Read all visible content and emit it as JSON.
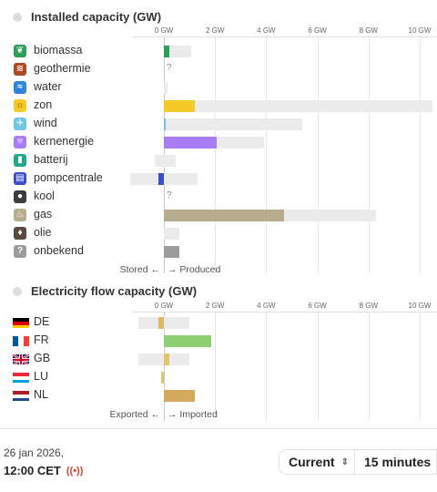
{
  "chart_data": [
    {
      "type": "bar",
      "title": "Installed capacity (GW)",
      "tick_labels": [
        "0 GW",
        "2 GW",
        "4 GW",
        "6 GW",
        "8 GW",
        "10 GW"
      ],
      "xlim": [
        -1.2,
        10.5
      ],
      "negative_label": "Stored ←",
      "positive_label": "→ Produced",
      "rows": [
        {
          "label": "biomassa",
          "icon": "biomass-icon",
          "color": "#2e9e5b",
          "value": 0.2,
          "capacity_pos": 1.05,
          "capacity_neg": 0
        },
        {
          "label": "geothermie",
          "icon": "geothermal-icon",
          "color": "#b04a22",
          "value": 0,
          "capacity_pos": 0,
          "capacity_neg": 0,
          "unknown": "?"
        },
        {
          "label": "water",
          "icon": "water-icon",
          "color": "#2f86d8",
          "value": 0,
          "capacity_pos": 0.15,
          "capacity_neg": 0
        },
        {
          "label": "zon",
          "icon": "solar-icon",
          "color": "#f5c926",
          "value": 1.2,
          "capacity_pos": 10.5,
          "capacity_neg": 0
        },
        {
          "label": "wind",
          "icon": "wind-icon",
          "color": "#6fc8ea",
          "value": 0.07,
          "capacity_pos": 5.4,
          "capacity_neg": 0
        },
        {
          "label": "kernenergie",
          "icon": "nuclear-icon",
          "color": "#a87cf2",
          "value": 2.05,
          "capacity_pos": 3.9,
          "capacity_neg": 0
        },
        {
          "label": "batterij",
          "icon": "battery-icon",
          "color": "#22a98f",
          "value": 0,
          "capacity_pos": 0.45,
          "capacity_neg": 0.35
        },
        {
          "label": "pompcentrale",
          "icon": "pumped-storage-icon",
          "color": "#3b4fc9",
          "value": -0.2,
          "capacity_pos": 1.3,
          "capacity_neg": 1.3
        },
        {
          "label": "kool",
          "icon": "coal-icon",
          "color": "#3d3d3d",
          "value": 0,
          "capacity_pos": 0,
          "capacity_neg": 0,
          "unknown": "?"
        },
        {
          "label": "gas",
          "icon": "gas-icon",
          "color": "#b8ac8f",
          "value": 4.7,
          "capacity_pos": 8.3,
          "capacity_neg": 0
        },
        {
          "label": "olie",
          "icon": "oil-icon",
          "color": "#5b4a42",
          "value": 0,
          "capacity_pos": 0.6,
          "capacity_neg": 0
        },
        {
          "label": "onbekend",
          "icon": "unknown-icon",
          "color": "#9c9c9c",
          "value": 0.6,
          "capacity_pos": 0.6,
          "capacity_neg": 0
        }
      ]
    },
    {
      "type": "bar",
      "title": "Electricity flow capacity (GW)",
      "tick_labels": [
        "0 GW",
        "2 GW",
        "4 GW",
        "6 GW",
        "8 GW",
        "10 GW"
      ],
      "xlim": [
        -1.2,
        10.5
      ],
      "negative_label": "Exported ←",
      "positive_label": "→ Imported",
      "rows": [
        {
          "label": "DE",
          "flag": "de",
          "color": "#ddb96a",
          "value": -0.2,
          "capacity_pos": 1.0,
          "capacity_neg": 1.0
        },
        {
          "label": "FR",
          "flag": "fr",
          "color": "#8ecf74",
          "value": 1.85,
          "capacity_pos": 1.85,
          "capacity_neg": 0
        },
        {
          "label": "GB",
          "flag": "gb",
          "color": "#e3c66a",
          "value": 0.2,
          "capacity_pos": 1.0,
          "capacity_neg": 1.0
        },
        {
          "label": "LU",
          "flag": "lu",
          "color": "#e3c66a",
          "value": -0.1,
          "capacity_pos": 0,
          "capacity_neg": 0.1
        },
        {
          "label": "NL",
          "flag": "nl",
          "color": "#d4aa5e",
          "value": 1.2,
          "capacity_pos": 1.2,
          "capacity_neg": 0
        }
      ]
    }
  ],
  "footer": {
    "date": "26 jan 2026,",
    "time": "12:00 CET",
    "mode_select": "Current",
    "interval_select": "15 minutes"
  },
  "colors": {
    "capacity_background": "#ebebeb",
    "grid": "#e9e9e9"
  }
}
